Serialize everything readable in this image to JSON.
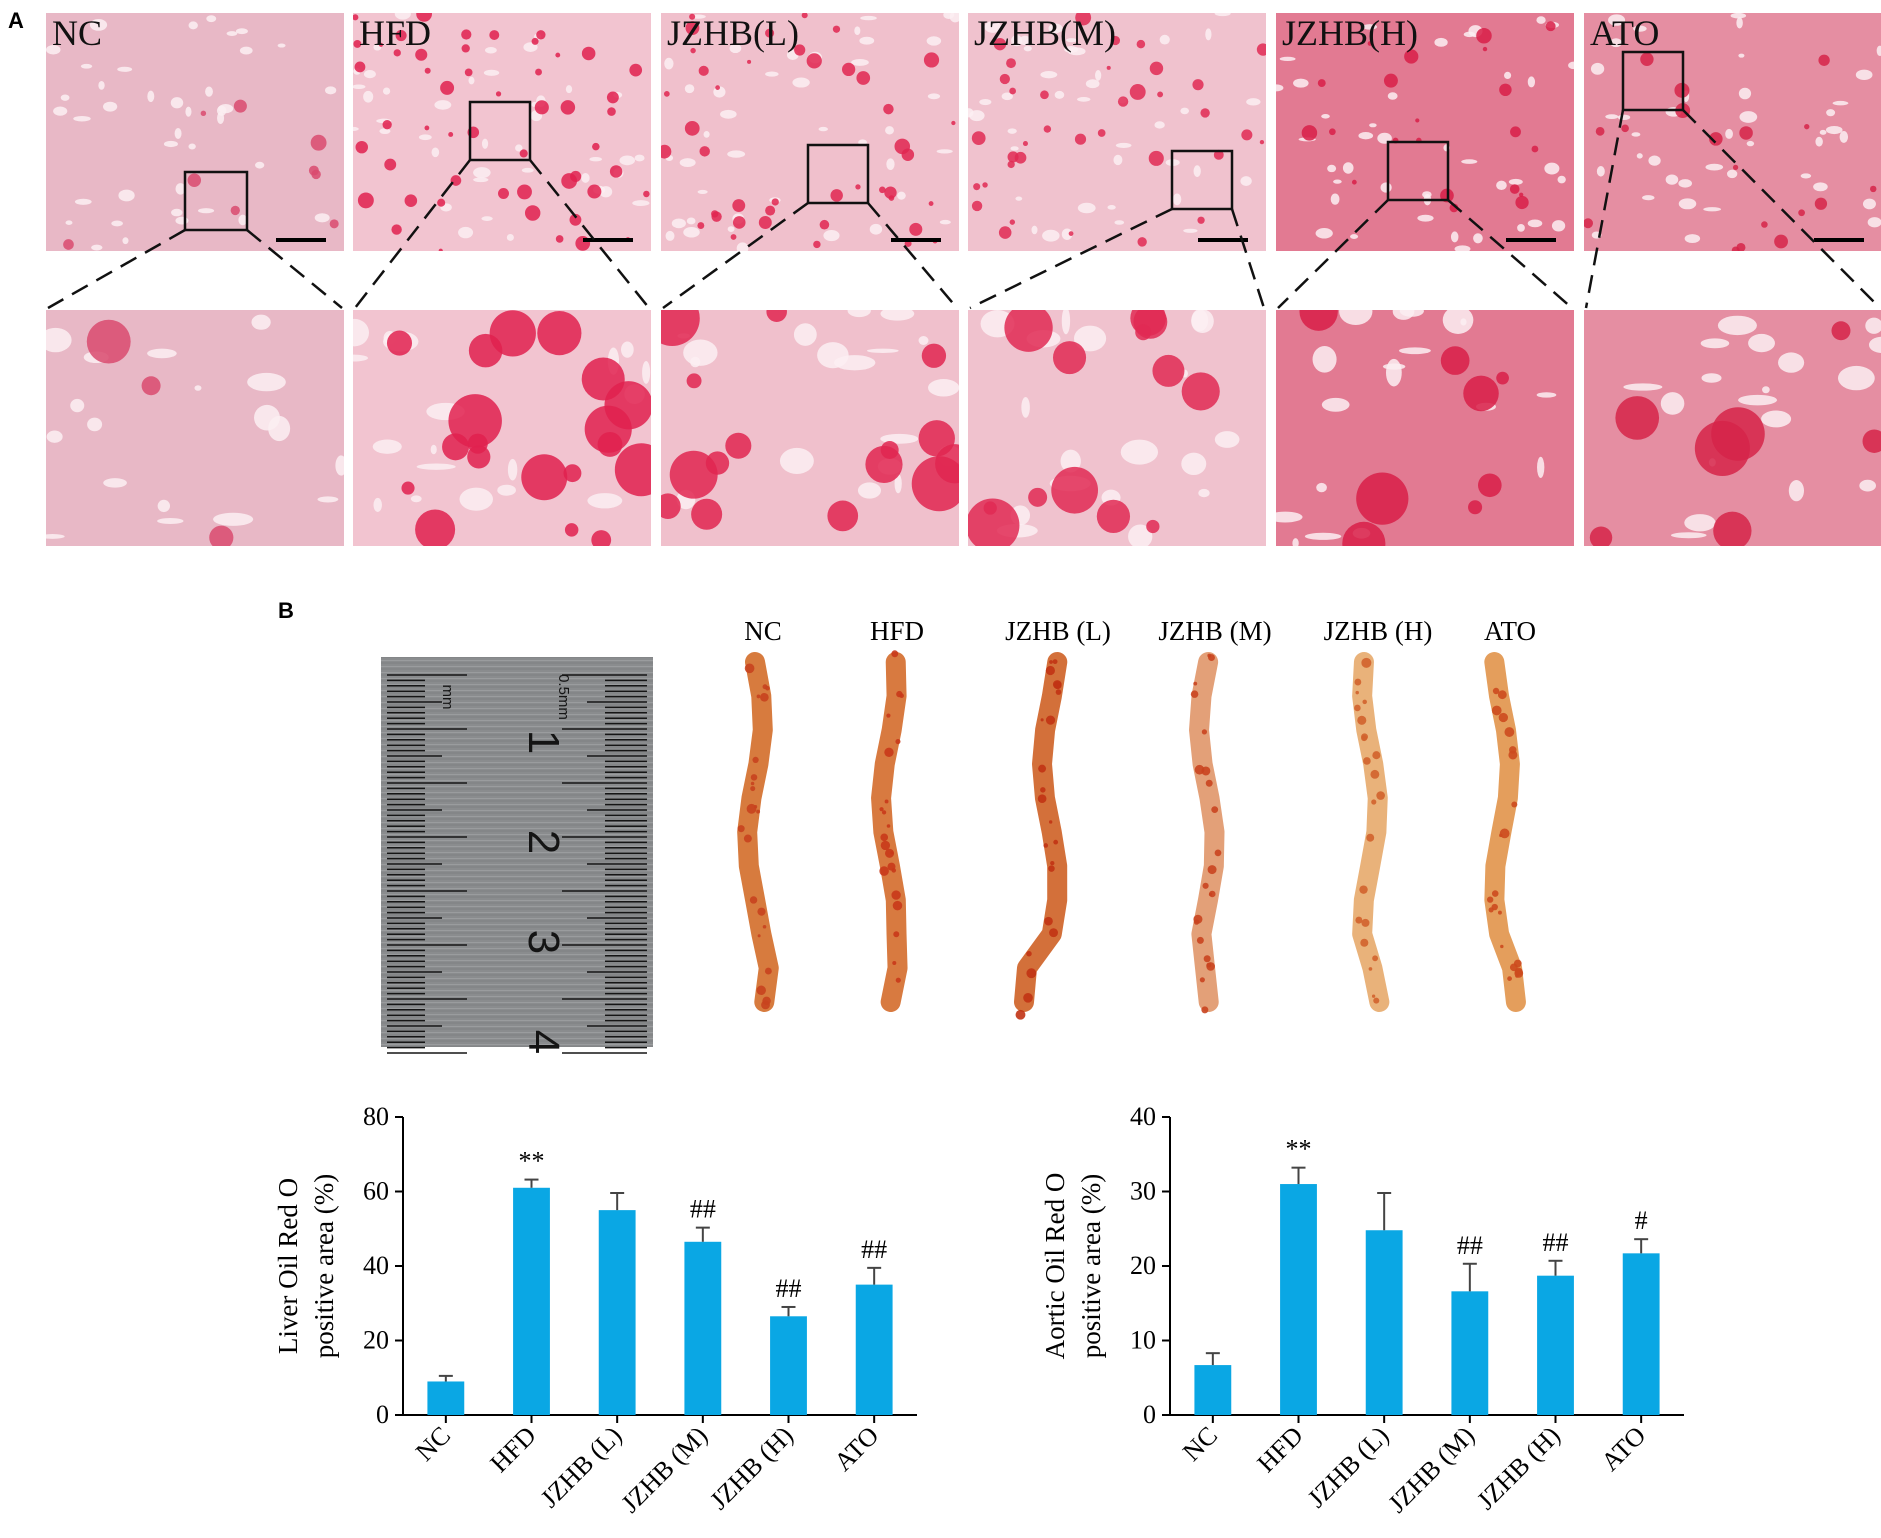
{
  "panel_a": {
    "letter": "A",
    "groups": [
      {
        "label": "NC",
        "color": "#e8b8c6",
        "blob_color": "#d94a6e",
        "blob_density": 0.15
      },
      {
        "label": "HFD",
        "color": "#f2c4d0",
        "blob_color": "#e0214f",
        "blob_density": 0.85
      },
      {
        "label": "JZHB(L)",
        "color": "#f0c0cc",
        "blob_color": "#e02650",
        "blob_density": 0.7
      },
      {
        "label": "JZHB(M)",
        "color": "#f0c2ce",
        "blob_color": "#e02a54",
        "blob_density": 0.6
      },
      {
        "label": "JZHB(H)",
        "color": "#e27a92",
        "blob_color": "#d81f48",
        "blob_density": 0.35
      },
      {
        "label": "ATO",
        "color": "#e58ea2",
        "blob_color": "#d62449",
        "blob_density": 0.3
      }
    ]
  },
  "panel_b": {
    "letter": "B",
    "aorta_labels": [
      "NC",
      "HFD",
      "JZHB (L)",
      "JZHB (M)",
      "JZHB (H)",
      "ATO"
    ],
    "ruler_labels": [
      "1",
      "2",
      "3",
      "4"
    ],
    "ruler_small_labels": [
      "mm",
      "0.5mm"
    ]
  },
  "chart_data": [
    {
      "type": "bar",
      "categories": [
        "NC",
        "HFD",
        "JZHB (L)",
        "JZHB (M)",
        "JZHB (H)",
        "ATO"
      ],
      "values": [
        9,
        61,
        55,
        46.5,
        26.5,
        35
      ],
      "errors": [
        1.5,
        2.2,
        4.6,
        3.8,
        2.5,
        4.5
      ],
      "annotations": [
        "",
        "**",
        "",
        "##",
        "##",
        "##"
      ],
      "ylabel": "Liver Oil Red O positive area (%)",
      "ylabel_lines": [
        "Liver Oil Red O",
        "positive area (%)"
      ],
      "ylim": [
        0,
        80
      ],
      "yticks": [
        0,
        20,
        40,
        60,
        80
      ],
      "bar_color": "#0aa7e4"
    },
    {
      "type": "bar",
      "categories": [
        "NC",
        "HFD",
        "JZHB (L)",
        "JZHB (M)",
        "JZHB (H)",
        "ATO"
      ],
      "values": [
        6.7,
        31,
        24.8,
        16.6,
        18.7,
        21.7
      ],
      "errors": [
        1.6,
        2.2,
        5.0,
        3.7,
        2.0,
        1.9
      ],
      "annotations": [
        "",
        "**",
        "",
        "##",
        "##",
        "#"
      ],
      "ylabel": "Aortic Oil Red O positive area (%)",
      "ylabel_lines": [
        "Aortic Oil Red O",
        "positive area (%)"
      ],
      "ylim": [
        0,
        40
      ],
      "yticks": [
        0,
        10,
        20,
        30,
        40
      ],
      "bar_color": "#0aa7e4"
    }
  ]
}
